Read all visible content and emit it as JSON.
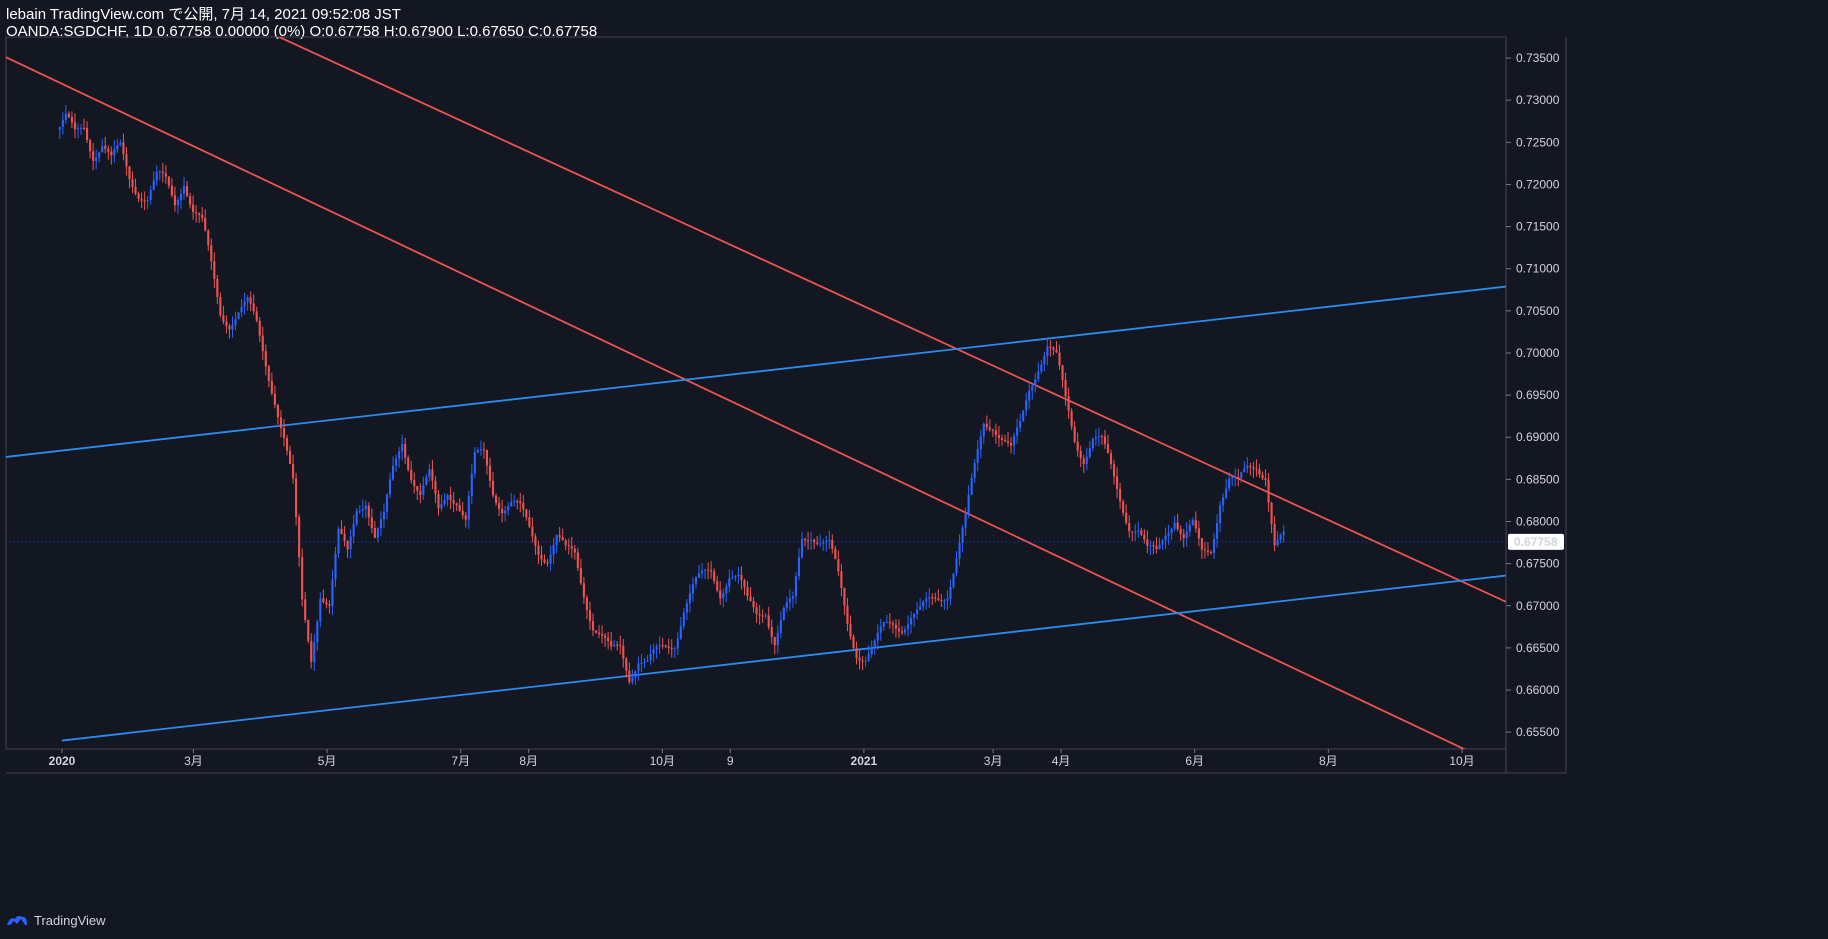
{
  "header": {
    "line1": "lebain TradingView.com で公開, 7月 14, 2021 09:52:08 JST",
    "line2": "OANDA:SGDCHF, 1D 0.67758 0.00000 (0%) O:0.67758 H:0.67900 L:0.67650 C:0.67758"
  },
  "footer": {
    "brand": "TradingView",
    "logo_icon": "tradingview-logo-icon"
  },
  "colors": {
    "background": "#131722",
    "up": "#2962ff",
    "down": "#ef5350",
    "trend_red": "#f23645",
    "trend_blue": "#2196f3",
    "axis": "#787b86",
    "price_label_bg": "#ffffff"
  },
  "chart_data": {
    "type": "candlestick",
    "symbol": "OANDA:SGDCHF",
    "interval": "1D",
    "last_price": "0.67758",
    "ylim": [
      0.653,
      0.7375
    ],
    "y_ticks": [
      "0.73500",
      "0.73000",
      "0.72500",
      "0.72000",
      "0.71500",
      "0.71000",
      "0.70500",
      "0.70000",
      "0.69500",
      "0.69000",
      "0.68500",
      "0.68000",
      "0.67500",
      "0.67000",
      "0.66500",
      "0.66000",
      "0.65500"
    ],
    "x_ticks": [
      "2020",
      "3月",
      "5月",
      "7月",
      "8月",
      "10月",
      "9",
      "2021",
      "3月",
      "4月",
      "6月",
      "8月",
      "10月"
    ],
    "series_close": [
      0.7265,
      0.7275,
      0.7255,
      0.727,
      0.724,
      0.725,
      0.7225,
      0.724,
      0.721,
      0.7195,
      0.7185,
      0.7205,
      0.72,
      0.718,
      0.721,
      0.717,
      0.715,
      0.71,
      0.705,
      0.704,
      0.705,
      0.7055,
      0.703,
      0.699,
      0.695,
      0.69,
      0.684,
      0.67,
      0.664,
      0.672,
      0.67,
      0.678,
      0.676,
      0.682,
      0.683,
      0.678,
      0.68,
      0.686,
      0.69,
      0.686,
      0.683,
      0.685,
      0.681,
      0.684,
      0.683,
      0.68,
      0.687,
      0.688,
      0.684,
      0.682,
      0.682,
      0.681,
      0.679,
      0.677,
      0.676,
      0.678,
      0.676,
      0.676,
      0.672,
      0.668,
      0.666,
      0.664,
      0.665,
      0.662,
      0.664,
      0.663,
      0.664,
      0.665,
      0.666,
      0.67,
      0.672,
      0.673,
      0.674,
      0.672,
      0.674,
      0.673,
      0.67,
      0.669,
      0.67,
      0.666,
      0.669,
      0.67,
      0.678,
      0.679,
      0.678,
      0.677,
      0.673,
      0.668,
      0.665,
      0.664,
      0.665,
      0.667,
      0.668,
      0.668,
      0.669,
      0.669,
      0.67,
      0.671,
      0.672,
      0.676,
      0.68,
      0.686,
      0.692,
      0.692,
      0.69,
      0.688,
      0.691,
      0.696,
      0.699,
      0.701,
      0.699,
      0.694,
      0.69,
      0.688,
      0.69,
      0.689,
      0.686,
      0.683,
      0.68,
      0.679,
      0.676,
      0.676,
      0.679,
      0.681,
      0.678,
      0.679,
      0.676,
      0.677,
      0.683,
      0.685,
      0.684,
      0.686,
      0.687,
      0.686,
      0.677,
      0.6776
    ],
    "trendlines": [
      {
        "color": "red",
        "from": [
          "2019-06-20",
          0.756
        ],
        "to": [
          "2021-10-10",
          0.652
        ]
      },
      {
        "color": "red",
        "from": [
          "2019-12-10",
          0.752
        ],
        "to": [
          "2021-10-25",
          0.67
        ]
      },
      {
        "color": "blue",
        "from": [
          "2019-12-01",
          0.6875
        ],
        "to": [
          "2021-10-25",
          0.708
        ]
      },
      {
        "color": "blue",
        "from": [
          "2020-01-01",
          0.654
        ],
        "to": [
          "2021-10-25",
          0.6737
        ]
      }
    ]
  }
}
